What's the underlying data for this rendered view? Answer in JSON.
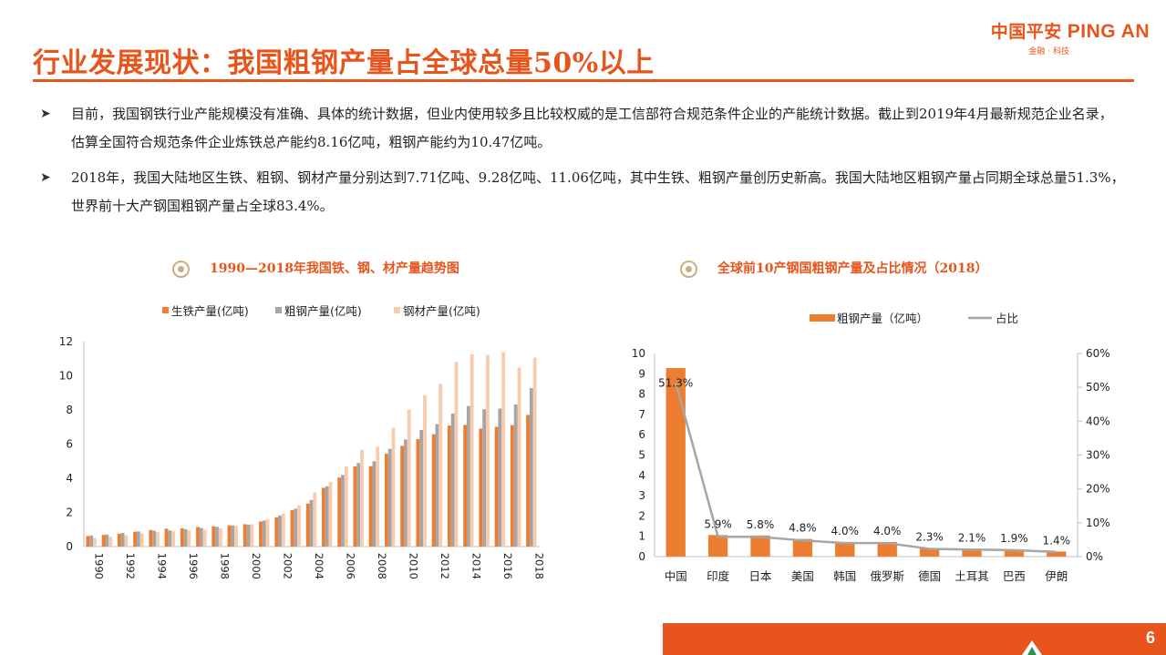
{
  "brand": {
    "name_cn": "中国平安",
    "name_en": "PING AN",
    "tagline": "金融 · 科技"
  },
  "page_title": "行业发展现状：我国粗钢产量占全球总量50%以上",
  "bullets": [
    "目前，我国钢铁行业产能规模没有准确、具体的统计数据，但业内使用较多且比较权威的是工信部符合规范条件企业的产能统计数据。截止到2019年4月最新规范企业名录，估算全国符合规范条件企业炼铁总产能约8.16亿吨，粗钢产能约为10.47亿吨。",
    "2018年，我国大陆地区生铁、粗钢、钢材产量分别达到7.71亿吨、9.28亿吨、11.06亿吨，其中生铁、粗钢产量创历史新高。我国大陆地区粗钢产量占同期全球总量51.3%，世界前十大产钢国粗钢产量占全球83.4%。"
  ],
  "page_number": "6",
  "colors": {
    "accent": "#e8551c",
    "pig_iron": "#ed7d31",
    "crude_steel": "#a5a5a5",
    "steel_products": "#f8cbad",
    "share_line": "#a6a6a6",
    "dot": "#c9ae82"
  },
  "chart_data": [
    {
      "type": "bar",
      "title": "1990—2018年我国铁、钢、材产量趋势图",
      "categories": [
        1990,
        1991,
        1992,
        1993,
        1994,
        1995,
        1996,
        1997,
        1998,
        1999,
        2000,
        2001,
        2002,
        2003,
        2004,
        2005,
        2006,
        2007,
        2008,
        2009,
        2010,
        2011,
        2012,
        2013,
        2014,
        2015,
        2016,
        2017,
        2018
      ],
      "x_tick_labels": [
        "1990",
        "1992",
        "1994",
        "1996",
        "1998",
        "2000",
        "2002",
        "2004",
        "2006",
        "2008",
        "2010",
        "2012",
        "2014",
        "2016",
        "2018"
      ],
      "series": [
        {
          "name": "生铁产量(亿吨)",
          "values": [
            0.62,
            0.68,
            0.75,
            0.87,
            0.97,
            1.05,
            1.07,
            1.15,
            1.19,
            1.25,
            1.31,
            1.47,
            1.71,
            2.14,
            2.52,
            3.44,
            4.04,
            4.69,
            4.71,
            5.44,
            5.9,
            6.29,
            6.58,
            7.09,
            7.12,
            6.91,
            7.01,
            7.11,
            7.71
          ]
        },
        {
          "name": "粗钢产量(亿吨)",
          "values": [
            0.66,
            0.71,
            0.8,
            0.89,
            0.93,
            0.95,
            1.01,
            1.09,
            1.16,
            1.24,
            1.29,
            1.52,
            1.82,
            2.22,
            2.73,
            3.53,
            4.19,
            4.89,
            5.0,
            5.72,
            6.27,
            6.83,
            7.17,
            7.79,
            8.23,
            8.04,
            8.08,
            8.32,
            9.28
          ]
        },
        {
          "name": "钢材产量(亿吨)",
          "values": [
            0.51,
            0.57,
            0.67,
            0.77,
            0.84,
            0.9,
            0.94,
            0.99,
            1.07,
            1.21,
            1.31,
            1.61,
            1.93,
            2.41,
            3.17,
            3.77,
            4.69,
            5.66,
            5.85,
            6.96,
            8.03,
            8.86,
            9.53,
            10.82,
            11.26,
            11.23,
            11.38,
            10.48,
            11.06
          ]
        }
      ],
      "ylim": [
        0,
        12
      ],
      "y_ticks": [
        "0",
        "2",
        "4",
        "6",
        "8",
        "10",
        "12"
      ],
      "legend_position": "top"
    },
    {
      "type": "bar",
      "title": "全球前10产钢国粗钢产量及占比情况（2018）",
      "categories": [
        "中国",
        "印度",
        "日本",
        "美国",
        "韩国",
        "俄罗斯",
        "德国",
        "土耳其",
        "巴西",
        "伊朗"
      ],
      "series": [
        {
          "name": "粗钢产量（亿吨）",
          "values": [
            9.28,
            1.06,
            1.04,
            0.87,
            0.72,
            0.72,
            0.42,
            0.37,
            0.35,
            0.25
          ]
        },
        {
          "name": "占比",
          "type": "line",
          "values": [
            51.3,
            5.9,
            5.8,
            4.8,
            4.0,
            4.0,
            2.3,
            2.1,
            1.9,
            1.4
          ],
          "labels": [
            "51.3%",
            "5.9%",
            "5.8%",
            "4.8%",
            "4.0%",
            "4.0%",
            "2.3%",
            "2.1%",
            "1.9%",
            "1.4%"
          ]
        }
      ],
      "ylim": [
        0,
        10
      ],
      "y2lim": [
        0,
        60
      ],
      "y_ticks": [
        "0",
        "1",
        "2",
        "3",
        "4",
        "5",
        "6",
        "7",
        "8",
        "9",
        "10"
      ],
      "y2_ticks": [
        "0%",
        "10%",
        "20%",
        "30%",
        "40%",
        "50%",
        "60%"
      ],
      "legend_position": "top"
    }
  ]
}
